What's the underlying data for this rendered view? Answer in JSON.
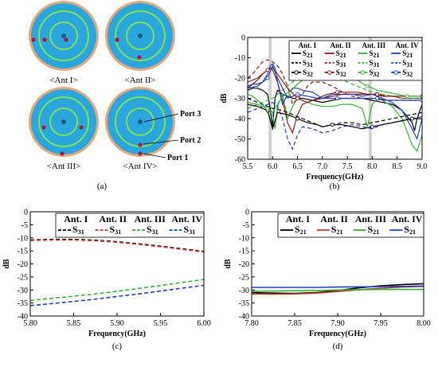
{
  "antennas": [
    {
      "label": "<Ant I>",
      "cx": 80,
      "cy": 45,
      "ports": [
        [
          42,
          50
        ],
        [
          56,
          50
        ],
        [
          83,
          50
        ]
      ]
    },
    {
      "label": "<Ant II>",
      "cx": 176,
      "cy": 45,
      "ports": [
        [
          147,
          50
        ],
        [
          175,
          72
        ]
      ]
    },
    {
      "label": "<Ant III>",
      "cx": 80,
      "cy": 153,
      "ports": [
        [
          55,
          160
        ],
        [
          102,
          160
        ],
        [
          78,
          193
        ]
      ]
    },
    {
      "label": "<Ant IV>",
      "cx": 176,
      "cy": 153,
      "ports": [
        [
          176,
          182
        ],
        [
          176,
          193
        ]
      ]
    }
  ],
  "port_labels": [
    "Port 3",
    "Port 2",
    "Port 1"
  ],
  "captions": [
    "(a)",
    "(b)",
    "(c)",
    "(d)"
  ],
  "chart_data": [
    {
      "id": "b",
      "type": "line",
      "caption": "(b)",
      "xlabel": "Frequency(GHz)",
      "ylabel": "dB",
      "xlim": [
        5.5,
        9.0
      ],
      "ylim": [
        -60,
        0
      ],
      "xticks": [
        "5.5",
        "6.0",
        "6.5",
        "7.0",
        "7.5",
        "8.0",
        "8.5",
        "9.0"
      ],
      "yticks": [
        "0",
        "-10",
        "-20",
        "-30",
        "-40",
        "-50",
        "-60"
      ],
      "highlight_bands": [
        [
          5.92,
          5.98
        ],
        [
          7.93,
          7.99
        ]
      ],
      "legend": {
        "headers": [
          "Ant. I",
          "Ant. II",
          "Ant. III",
          "Ant. IV"
        ],
        "rows": [
          [
            "S21",
            "S21",
            "S21",
            "S21"
          ],
          [
            "S31",
            "S31",
            "S31",
            "S31"
          ],
          [
            "S32",
            "S32",
            "S32",
            "S32"
          ]
        ]
      },
      "series": [
        {
          "ant": "Ant. I",
          "param": "S21",
          "color": "#000000",
          "dash": "",
          "marker": "",
          "x": [
            5.5,
            5.6,
            5.7,
            5.8,
            5.9,
            5.95,
            6.0,
            6.05,
            6.1,
            6.2,
            6.4,
            6.6,
            6.8,
            7.0,
            7.2,
            7.4,
            7.6,
            7.8,
            8.0,
            8.2,
            8.4,
            8.6,
            8.8,
            8.85,
            8.9,
            9.0
          ],
          "y": [
            -26,
            -25,
            -25,
            -26,
            -28,
            -35,
            -44,
            -30,
            -26,
            -28,
            -30,
            -30,
            -31,
            -32,
            -31,
            -30,
            -30,
            -30,
            -31,
            -32,
            -33,
            -36,
            -42,
            -46,
            -40,
            -33
          ]
        },
        {
          "ant": "Ant. II",
          "param": "S21",
          "color": "#8b1a1a",
          "dash": "",
          "marker": "",
          "x": [
            5.5,
            5.6,
            5.7,
            5.8,
            5.9,
            5.95,
            6.0,
            6.1,
            6.2,
            6.3,
            6.4,
            6.5,
            6.6,
            6.8,
            7.0,
            7.2,
            7.4,
            7.6,
            7.8,
            8.0,
            8.2,
            8.4,
            8.6,
            8.8,
            9.0
          ],
          "y": [
            -25,
            -23,
            -21,
            -18,
            -16,
            -15,
            -16,
            -22,
            -31,
            -42,
            -47,
            -38,
            -33,
            -31,
            -30,
            -29,
            -28,
            -28,
            -28,
            -28,
            -29,
            -29,
            -30,
            -30,
            -30
          ]
        },
        {
          "ant": "Ant. III",
          "param": "S21",
          "color": "#33b233",
          "dash": "",
          "marker": "",
          "x": [
            5.5,
            5.6,
            5.7,
            5.8,
            5.9,
            6.0,
            6.05,
            6.1,
            6.2,
            6.3,
            6.4,
            6.5,
            6.6,
            6.8,
            7.0,
            7.2,
            7.4,
            7.6,
            7.8,
            7.9,
            8.0,
            8.1,
            8.2,
            8.4,
            8.6,
            8.8,
            8.9,
            9.0
          ],
          "y": [
            -28,
            -29,
            -31,
            -33,
            -36,
            -38,
            -45,
            -34,
            -28,
            -40,
            -34,
            -30,
            -31,
            -33,
            -34,
            -34,
            -33,
            -33,
            -35,
            -44,
            -33,
            -30,
            -31,
            -34,
            -40,
            -53,
            -56,
            -48
          ]
        },
        {
          "ant": "Ant. IV",
          "param": "S21",
          "color": "#1f3fbf",
          "dash": "",
          "marker": "",
          "x": [
            5.5,
            5.6,
            5.7,
            5.8,
            5.9,
            5.95,
            6.0,
            6.05,
            6.1,
            6.2,
            6.3,
            6.4,
            6.5,
            6.6,
            6.8,
            7.0,
            7.2,
            7.4,
            7.6,
            7.8,
            8.0,
            8.2,
            8.4,
            8.6,
            8.8,
            8.9,
            9.0
          ],
          "y": [
            -24,
            -23,
            -23,
            -22,
            -18,
            -14,
            -13,
            -15,
            -22,
            -33,
            -28,
            -25,
            -25,
            -26,
            -27,
            -30,
            -28,
            -28,
            -28,
            -29,
            -28,
            -30,
            -32,
            -36,
            -45,
            -50,
            -40
          ]
        },
        {
          "ant": "Ant. I",
          "param": "S31",
          "color": "#000000",
          "dash": "5,3",
          "marker": "",
          "x": [
            5.5,
            5.6,
            5.7,
            5.8,
            5.9,
            6.0,
            6.2,
            6.4,
            6.6,
            6.8,
            7.0,
            7.2,
            7.4,
            7.6,
            7.8,
            8.0,
            8.2,
            8.4,
            8.6,
            8.8,
            9.0
          ],
          "y": [
            -30,
            -31,
            -32,
            -33,
            -34,
            -35,
            -36,
            -38,
            -40,
            -42,
            -44,
            -43,
            -42,
            -42,
            -43,
            -42,
            -41,
            -40,
            -39,
            -38,
            -37
          ]
        },
        {
          "ant": "Ant. II",
          "param": "S31",
          "color": "#8b1a1a",
          "dash": "5,3",
          "marker": "",
          "x": [
            5.5,
            5.6,
            5.7,
            5.8,
            5.9,
            6.0,
            6.1,
            6.2,
            6.3,
            6.4,
            6.5,
            6.6,
            6.7,
            6.8,
            7.0,
            7.2,
            7.4,
            7.6,
            7.8,
            8.0,
            8.2,
            8.4,
            8.6,
            8.8,
            9.0
          ],
          "y": [
            -20,
            -18,
            -15,
            -12,
            -11,
            -12,
            -14,
            -18,
            -24,
            -33,
            -30,
            -28,
            -24,
            -22,
            -22,
            -24,
            -27,
            -29,
            -30,
            -30,
            -31,
            -31,
            -31,
            -31,
            -31
          ]
        },
        {
          "ant": "Ant. III",
          "param": "S31",
          "color": "#33b233",
          "dash": "5,3",
          "marker": "",
          "x": [
            5.5,
            5.6,
            5.7,
            5.8,
            5.9,
            6.0,
            6.1,
            6.2,
            6.3,
            6.4,
            6.5,
            6.6,
            6.8,
            7.0,
            7.2,
            7.4,
            7.6,
            7.8,
            8.0,
            8.2,
            8.4,
            8.6,
            8.8,
            9.0
          ],
          "y": [
            -35,
            -34,
            -33,
            -32,
            -31,
            -30,
            -28,
            -26,
            -24,
            -22,
            -20,
            -19,
            -18,
            -18,
            -19,
            -21,
            -23,
            -25,
            -27,
            -28,
            -29,
            -30,
            -30,
            -30
          ]
        },
        {
          "ant": "Ant. IV",
          "param": "S31",
          "color": "#1f3fbf",
          "dash": "5,3",
          "marker": "",
          "x": [
            5.5,
            5.6,
            5.7,
            5.8,
            5.9,
            6.0,
            6.1,
            6.2,
            6.3,
            6.4,
            6.5,
            6.6,
            6.8,
            7.0,
            7.2,
            7.4,
            7.6,
            7.8,
            8.0,
            8.2,
            8.4,
            8.6,
            8.8,
            9.0
          ],
          "y": [
            -37,
            -36,
            -35,
            -34,
            -33,
            -32,
            -34,
            -40,
            -50,
            -55,
            -48,
            -44,
            -45,
            -47,
            -46,
            -44,
            -43,
            -44,
            -45,
            -43,
            -42,
            -41,
            -40,
            -39
          ]
        },
        {
          "ant": "Ant. I",
          "param": "S32",
          "color": "#000000",
          "dash": "",
          "marker": "circle",
          "x": [
            5.5,
            5.7,
            5.9,
            6.0,
            6.1,
            6.3,
            6.5,
            6.7,
            6.9,
            7.0,
            7.2,
            7.4,
            7.6,
            7.8,
            8.0,
            8.2,
            8.4,
            8.6,
            8.8,
            9.0
          ],
          "y": [
            -33,
            -34,
            -36,
            -45,
            -37,
            -38,
            -40,
            -42,
            -43,
            -44,
            -43,
            -43,
            -44,
            -45,
            -44,
            -43,
            -42,
            -41,
            -40,
            -40
          ]
        },
        {
          "ant": "Ant. II",
          "param": "S32",
          "color": "#8b1a1a",
          "dash": "",
          "marker": "circle",
          "x": [
            5.5,
            5.7,
            5.9,
            6.0,
            6.1,
            6.3,
            6.5,
            6.7,
            6.9,
            7.1,
            7.3,
            7.5,
            7.7,
            7.9,
            8.1,
            8.3,
            8.5,
            8.7,
            9.0
          ],
          "y": [
            -22,
            -20,
            -16,
            -15,
            -18,
            -25,
            -30,
            -32,
            -30,
            -28,
            -27,
            -27,
            -27,
            -28,
            -28,
            -29,
            -29,
            -29,
            -29
          ]
        },
        {
          "ant": "Ant. III",
          "param": "S32",
          "color": "#33b233",
          "dash": "",
          "marker": "circle",
          "x": [
            5.5,
            5.7,
            5.9,
            6.0,
            6.1,
            6.2,
            6.3,
            6.5,
            6.7,
            6.9,
            7.1,
            7.3,
            7.5,
            7.7,
            7.9,
            8.1,
            8.3,
            8.5,
            8.7,
            9.0
          ],
          "y": [
            -32,
            -33,
            -35,
            -37,
            -33,
            -29,
            -28,
            -23,
            -19,
            -17,
            -17,
            -18,
            -19,
            -21,
            -24,
            -26,
            -27,
            -28,
            -29,
            -29
          ]
        },
        {
          "ant": "Ant. IV",
          "param": "S32",
          "color": "#1f3fbf",
          "dash": "",
          "marker": "circle",
          "x": [
            5.5,
            5.7,
            5.9,
            6.0,
            6.1,
            6.3,
            6.5,
            6.7,
            6.9,
            7.1,
            7.3,
            7.5,
            7.7,
            7.9,
            8.1,
            8.3,
            8.5,
            8.7,
            9.0
          ],
          "y": [
            -25,
            -24,
            -20,
            -14,
            -20,
            -30,
            -28,
            -29,
            -30,
            -30,
            -30,
            -30,
            -30,
            -30,
            -30,
            -31,
            -31,
            -31,
            -31
          ]
        }
      ]
    },
    {
      "id": "c",
      "type": "line",
      "caption": "(c)",
      "xlabel": "Frequency(GHz)",
      "ylabel": "dB",
      "xlim": [
        5.8,
        6.0
      ],
      "ylim": [
        -40,
        0
      ],
      "xticks": [
        "5.80",
        "5.85",
        "5.90",
        "5.95",
        "6.00"
      ],
      "yticks": [
        "0",
        "-5",
        "-10",
        "-15",
        "-20",
        "-25",
        "-30",
        "-35",
        "-40"
      ],
      "legend": {
        "headers": [
          "Ant. I",
          "Ant. II",
          "Ant. III",
          "Ant. IV"
        ],
        "rows": [
          [
            "S31",
            "S31",
            "S31",
            "S31"
          ]
        ]
      },
      "series": [
        {
          "ant": "Ant. I",
          "param": "S31",
          "color": "#000000",
          "dash": "5,3",
          "x": [
            5.8,
            5.825,
            5.85,
            5.875,
            5.9,
            5.925,
            5.95,
            5.975,
            6.0
          ],
          "y": [
            -10.8,
            -10.6,
            -10.6,
            -10.9,
            -11.5,
            -12.3,
            -13.2,
            -14.2,
            -15.2
          ]
        },
        {
          "ant": "Ant. II",
          "param": "S31",
          "color": "#c0392b",
          "dash": "5,3",
          "x": [
            5.8,
            5.825,
            5.85,
            5.875,
            5.9,
            5.925,
            5.95,
            5.975,
            6.0
          ],
          "y": [
            -11.0,
            -10.8,
            -10.8,
            -11.1,
            -11.7,
            -12.5,
            -13.4,
            -14.4,
            -15.4
          ]
        },
        {
          "ant": "Ant. III",
          "param": "S31",
          "color": "#33b233",
          "dash": "5,3",
          "x": [
            5.8,
            5.825,
            5.85,
            5.875,
            5.9,
            5.925,
            5.95,
            5.975,
            6.0
          ],
          "y": [
            -34.0,
            -33.2,
            -32.4,
            -31.5,
            -30.5,
            -29.4,
            -28.3,
            -27.1,
            -26.0
          ]
        },
        {
          "ant": "Ant. IV",
          "param": "S31",
          "color": "#1f3fbf",
          "dash": "5,3",
          "x": [
            5.8,
            5.825,
            5.85,
            5.875,
            5.9,
            5.925,
            5.95,
            5.975,
            6.0
          ],
          "y": [
            -36.0,
            -35.2,
            -34.4,
            -33.5,
            -32.5,
            -31.5,
            -30.4,
            -29.3,
            -28.2
          ]
        }
      ]
    },
    {
      "id": "d",
      "type": "line",
      "caption": "(d)",
      "xlabel": "Frequency(GHz)",
      "ylabel": "dB",
      "xlim": [
        7.8,
        8.0
      ],
      "ylim": [
        -40,
        0
      ],
      "xticks": [
        "7.80",
        "7.85",
        "7.90",
        "7.95",
        "8.00"
      ],
      "yticks": [
        "0",
        "-5",
        "-10",
        "-15",
        "-20",
        "-25",
        "-30",
        "-35",
        "-40"
      ],
      "legend": {
        "headers": [
          "Ant. I",
          "Ant. II",
          "Ant. III",
          "Ant. IV"
        ],
        "rows": [
          [
            "S21",
            "S21",
            "S21",
            "S21"
          ]
        ]
      },
      "series": [
        {
          "ant": "Ant. I",
          "param": "S21",
          "color": "#000000",
          "dash": "",
          "x": [
            7.8,
            7.825,
            7.85,
            7.875,
            7.9,
            7.925,
            7.95,
            7.975,
            8.0
          ],
          "y": [
            -31.0,
            -31.2,
            -31.3,
            -31.0,
            -30.2,
            -29.2,
            -28.4,
            -27.9,
            -27.6
          ]
        },
        {
          "ant": "Ant. II",
          "param": "S21",
          "color": "#c0392b",
          "dash": "",
          "x": [
            7.8,
            7.825,
            7.85,
            7.875,
            7.9,
            7.925,
            7.95,
            7.975,
            8.0
          ],
          "y": [
            -31.5,
            -31.6,
            -31.5,
            -31.2,
            -30.6,
            -29.9,
            -29.3,
            -28.9,
            -28.6
          ]
        },
        {
          "ant": "Ant. III",
          "param": "S21",
          "color": "#33b233",
          "dash": "",
          "x": [
            7.8,
            7.825,
            7.85,
            7.875,
            7.9,
            7.925,
            7.95,
            7.975,
            8.0
          ],
          "y": [
            -30.5,
            -30.4,
            -30.3,
            -30.2,
            -30.0,
            -29.9,
            -29.8,
            -29.8,
            -29.8
          ]
        },
        {
          "ant": "Ant. IV",
          "param": "S21",
          "color": "#1f3fbf",
          "dash": "",
          "x": [
            7.8,
            7.825,
            7.85,
            7.875,
            7.9,
            7.925,
            7.95,
            7.975,
            8.0
          ],
          "y": [
            -29.0,
            -29.0,
            -29.0,
            -29.0,
            -28.9,
            -28.8,
            -28.7,
            -28.6,
            -28.5
          ]
        }
      ]
    }
  ]
}
